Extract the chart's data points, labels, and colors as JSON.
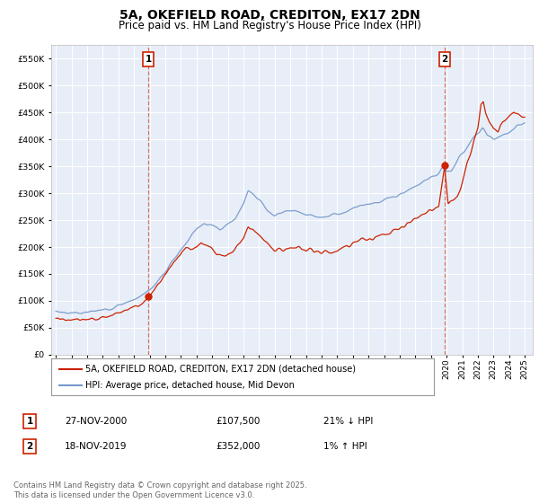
{
  "title": "5A, OKEFIELD ROAD, CREDITON, EX17 2DN",
  "subtitle": "Price paid vs. HM Land Registry's House Price Index (HPI)",
  "title_fontsize": 10,
  "subtitle_fontsize": 8.5,
  "background_color": "#ffffff",
  "plot_bg_color": "#e8eef8",
  "grid_color": "#ffffff",
  "hpi_color": "#7799cc",
  "price_color": "#cc2200",
  "ylim": [
    0,
    575000
  ],
  "yticks": [
    0,
    50000,
    100000,
    150000,
    200000,
    250000,
    300000,
    350000,
    400000,
    450000,
    500000,
    550000
  ],
  "xlim_start": 1994.7,
  "xlim_end": 2025.5,
  "xticks": [
    1995,
    1996,
    1997,
    1998,
    1999,
    2000,
    2001,
    2002,
    2003,
    2004,
    2005,
    2006,
    2007,
    2008,
    2009,
    2010,
    2011,
    2012,
    2013,
    2014,
    2015,
    2016,
    2017,
    2018,
    2019,
    2020,
    2021,
    2022,
    2023,
    2024,
    2025
  ],
  "sale1_x": 2000.91,
  "sale1_y": 107500,
  "sale1_label": "1",
  "sale2_x": 2019.88,
  "sale2_y": 352000,
  "sale2_label": "2",
  "legend_entries": [
    "5A, OKEFIELD ROAD, CREDITON, EX17 2DN (detached house)",
    "HPI: Average price, detached house, Mid Devon"
  ],
  "annotation1": [
    "1",
    "27-NOV-2000",
    "£107,500",
    "21% ↓ HPI"
  ],
  "annotation2": [
    "2",
    "18-NOV-2019",
    "£352,000",
    "1% ↑ HPI"
  ],
  "footer": "Contains HM Land Registry data © Crown copyright and database right 2025.\nThis data is licensed under the Open Government Licence v3.0.",
  "hpi_key_points": [
    [
      1995.0,
      80000
    ],
    [
      1995.5,
      79000
    ],
    [
      1996.0,
      78000
    ],
    [
      1996.5,
      77500
    ],
    [
      1997.0,
      78000
    ],
    [
      1997.5,
      80000
    ],
    [
      1998.0,
      83000
    ],
    [
      1998.5,
      87000
    ],
    [
      1999.0,
      91000
    ],
    [
      1999.5,
      97000
    ],
    [
      2000.0,
      103000
    ],
    [
      2000.5,
      110000
    ],
    [
      2001.0,
      120000
    ],
    [
      2001.5,
      135000
    ],
    [
      2002.0,
      155000
    ],
    [
      2002.5,
      175000
    ],
    [
      2003.0,
      195000
    ],
    [
      2003.5,
      215000
    ],
    [
      2004.0,
      235000
    ],
    [
      2004.5,
      245000
    ],
    [
      2005.0,
      240000
    ],
    [
      2005.5,
      235000
    ],
    [
      2006.0,
      242000
    ],
    [
      2006.5,
      255000
    ],
    [
      2007.0,
      280000
    ],
    [
      2007.3,
      305000
    ],
    [
      2007.6,
      300000
    ],
    [
      2008.0,
      290000
    ],
    [
      2008.5,
      270000
    ],
    [
      2009.0,
      258000
    ],
    [
      2009.5,
      262000
    ],
    [
      2010.0,
      268000
    ],
    [
      2010.5,
      265000
    ],
    [
      2011.0,
      260000
    ],
    [
      2011.5,
      258000
    ],
    [
      2012.0,
      257000
    ],
    [
      2012.5,
      258000
    ],
    [
      2013.0,
      262000
    ],
    [
      2013.5,
      265000
    ],
    [
      2014.0,
      272000
    ],
    [
      2014.5,
      278000
    ],
    [
      2015.0,
      280000
    ],
    [
      2015.5,
      283000
    ],
    [
      2016.0,
      287000
    ],
    [
      2016.5,
      292000
    ],
    [
      2017.0,
      298000
    ],
    [
      2017.5,
      305000
    ],
    [
      2018.0,
      312000
    ],
    [
      2018.5,
      320000
    ],
    [
      2019.0,
      328000
    ],
    [
      2019.5,
      335000
    ],
    [
      2019.88,
      352000
    ],
    [
      2020.0,
      340000
    ],
    [
      2020.3,
      342000
    ],
    [
      2020.6,
      355000
    ],
    [
      2021.0,
      375000
    ],
    [
      2021.5,
      395000
    ],
    [
      2022.0,
      415000
    ],
    [
      2022.3,
      420000
    ],
    [
      2022.6,
      408000
    ],
    [
      2023.0,
      400000
    ],
    [
      2023.5,
      405000
    ],
    [
      2024.0,
      415000
    ],
    [
      2024.5,
      425000
    ],
    [
      2025.0,
      430000
    ]
  ],
  "price_key_points": [
    [
      1995.0,
      65000
    ],
    [
      1995.5,
      64000
    ],
    [
      1996.0,
      64500
    ],
    [
      1996.5,
      65000
    ],
    [
      1997.0,
      66000
    ],
    [
      1997.5,
      68000
    ],
    [
      1998.0,
      70000
    ],
    [
      1998.5,
      74000
    ],
    [
      1999.0,
      78000
    ],
    [
      1999.5,
      83000
    ],
    [
      2000.0,
      89000
    ],
    [
      2000.5,
      96000
    ],
    [
      2000.91,
      107500
    ],
    [
      2001.2,
      118000
    ],
    [
      2001.5,
      128000
    ],
    [
      2002.0,
      148000
    ],
    [
      2002.5,
      168000
    ],
    [
      2003.0,
      185000
    ],
    [
      2003.3,
      200000
    ],
    [
      2003.6,
      195000
    ],
    [
      2004.0,
      200000
    ],
    [
      2004.3,
      210000
    ],
    [
      2004.6,
      205000
    ],
    [
      2005.0,
      195000
    ],
    [
      2005.3,
      185000
    ],
    [
      2005.6,
      183000
    ],
    [
      2006.0,
      188000
    ],
    [
      2006.5,
      198000
    ],
    [
      2007.0,
      215000
    ],
    [
      2007.3,
      240000
    ],
    [
      2007.6,
      235000
    ],
    [
      2008.0,
      225000
    ],
    [
      2008.3,
      215000
    ],
    [
      2008.6,
      205000
    ],
    [
      2009.0,
      195000
    ],
    [
      2009.5,
      193000
    ],
    [
      2010.0,
      198000
    ],
    [
      2010.5,
      198000
    ],
    [
      2011.0,
      194000
    ],
    [
      2011.5,
      192000
    ],
    [
      2012.0,
      190000
    ],
    [
      2012.5,
      190000
    ],
    [
      2013.0,
      193000
    ],
    [
      2013.5,
      198000
    ],
    [
      2014.0,
      205000
    ],
    [
      2014.5,
      212000
    ],
    [
      2015.0,
      216000
    ],
    [
      2015.5,
      219000
    ],
    [
      2016.0,
      224000
    ],
    [
      2016.5,
      230000
    ],
    [
      2017.0,
      237000
    ],
    [
      2017.5,
      244000
    ],
    [
      2018.0,
      252000
    ],
    [
      2018.5,
      260000
    ],
    [
      2019.0,
      268000
    ],
    [
      2019.5,
      276000
    ],
    [
      2019.88,
      352000
    ],
    [
      2020.1,
      285000
    ],
    [
      2020.4,
      288000
    ],
    [
      2020.7,
      295000
    ],
    [
      2021.0,
      320000
    ],
    [
      2021.3,
      355000
    ],
    [
      2021.6,
      380000
    ],
    [
      2022.0,
      420000
    ],
    [
      2022.2,
      465000
    ],
    [
      2022.35,
      470000
    ],
    [
      2022.5,
      450000
    ],
    [
      2022.7,
      435000
    ],
    [
      2023.0,
      420000
    ],
    [
      2023.3,
      415000
    ],
    [
      2023.6,
      430000
    ],
    [
      2024.0,
      440000
    ],
    [
      2024.3,
      450000
    ],
    [
      2024.6,
      445000
    ],
    [
      2025.0,
      440000
    ]
  ]
}
